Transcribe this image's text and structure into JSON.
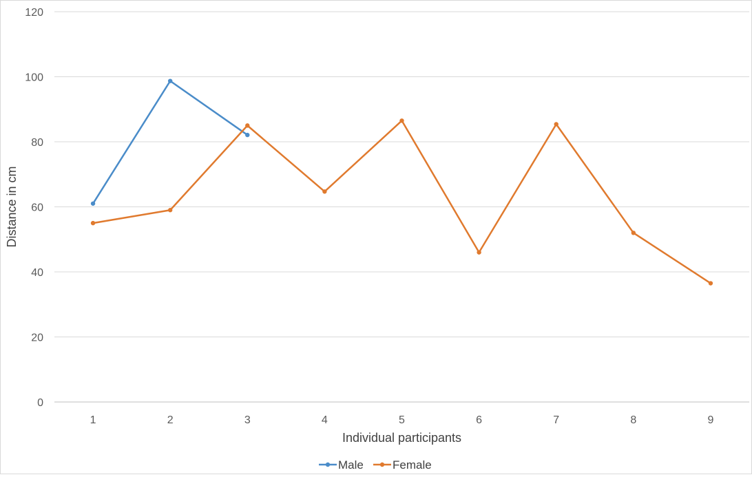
{
  "chart_data": {
    "type": "line",
    "x": [
      1,
      2,
      3,
      4,
      5,
      6,
      7,
      8,
      9
    ],
    "xlabel": "Individual participants",
    "ylabel": "Distance in cm",
    "ylim": [
      0,
      120
    ],
    "yticks": [
      0,
      20,
      40,
      60,
      80,
      100,
      120
    ],
    "grid": true,
    "legend_position": "bottom",
    "series": [
      {
        "name": "Male",
        "color": "#4a8cc9",
        "x": [
          1,
          2,
          3
        ],
        "values": [
          61,
          98.7,
          82.1
        ]
      },
      {
        "name": "Female",
        "color": "#e07a2e",
        "x": [
          1,
          2,
          3,
          4,
          5,
          6,
          7,
          8,
          9
        ],
        "values": [
          55,
          59,
          85,
          64.7,
          86.5,
          46,
          85.4,
          52,
          36.5
        ]
      }
    ]
  }
}
